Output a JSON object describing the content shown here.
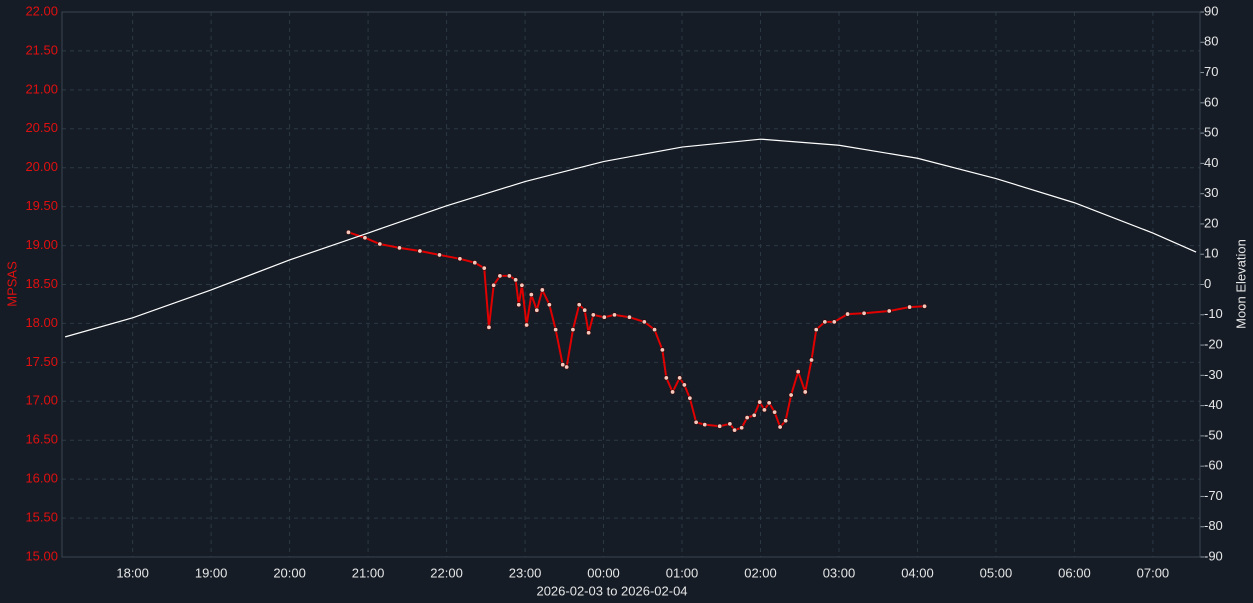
{
  "chart_data": {
    "type": "line",
    "xlabel": "2026-02-03 to 2026-02-04",
    "ylabel": "MPSAS",
    "y2label": "Moon Elevation",
    "grid": true,
    "xlim": [
      17.1,
      31.6
    ],
    "xticks": [
      {
        "value": 18,
        "label": "18:00"
      },
      {
        "value": 19,
        "label": "19:00"
      },
      {
        "value": 20,
        "label": "20:00"
      },
      {
        "value": 21,
        "label": "21:00"
      },
      {
        "value": 22,
        "label": "22:00"
      },
      {
        "value": 23,
        "label": "23:00"
      },
      {
        "value": 24,
        "label": "00:00"
      },
      {
        "value": 25,
        "label": "01:00"
      },
      {
        "value": 26,
        "label": "02:00"
      },
      {
        "value": 27,
        "label": "03:00"
      },
      {
        "value": 28,
        "label": "04:00"
      },
      {
        "value": 29,
        "label": "05:00"
      },
      {
        "value": 30,
        "label": "06:00"
      },
      {
        "value": 31,
        "label": "07:00"
      }
    ],
    "ylim": [
      15,
      22
    ],
    "yticks": [
      {
        "value": 15,
        "label": "15.00"
      },
      {
        "value": 15.5,
        "label": "15.50"
      },
      {
        "value": 16,
        "label": "16.00"
      },
      {
        "value": 16.5,
        "label": "16.50"
      },
      {
        "value": 17,
        "label": "17.00"
      },
      {
        "value": 17.5,
        "label": "17.50"
      },
      {
        "value": 18,
        "label": "18.00"
      },
      {
        "value": 18.5,
        "label": "18.50"
      },
      {
        "value": 19,
        "label": "19.00"
      },
      {
        "value": 19.5,
        "label": "19.50"
      },
      {
        "value": 20,
        "label": "20.00"
      },
      {
        "value": 20.5,
        "label": "20.50"
      },
      {
        "value": 21,
        "label": "21.00"
      },
      {
        "value": 21.5,
        "label": "21.50"
      },
      {
        "value": 22,
        "label": "22.00"
      }
    ],
    "y2lim": [
      -90,
      90
    ],
    "y2ticks": [
      -90,
      -80,
      -70,
      -60,
      -50,
      -40,
      -30,
      -20,
      -10,
      0,
      10,
      20,
      30,
      40,
      50,
      60,
      70,
      80,
      90
    ],
    "series": [
      {
        "color": "#e00000",
        "marker_color": "#f4c8bc",
        "x": [
          20.75,
          20.96,
          21.15,
          21.4,
          21.66,
          21.91,
          22.17,
          22.36,
          22.48,
          22.54,
          22.6,
          22.68,
          22.8,
          22.88,
          22.92,
          22.96,
          23.02,
          23.08,
          23.15,
          23.22,
          23.31,
          23.39,
          23.48,
          23.53,
          23.61,
          23.69,
          23.76,
          23.81,
          23.87,
          24.01,
          24.14,
          24.33,
          24.52,
          24.65,
          24.75,
          24.8,
          24.88,
          24.97,
          25.03,
          25.1,
          25.18,
          25.29,
          25.48,
          25.61,
          25.67,
          25.76,
          25.83,
          25.92,
          25.99,
          26.05,
          26.11,
          26.18,
          26.25,
          26.32,
          26.39,
          26.48,
          26.57,
          26.65,
          26.71,
          26.82,
          26.94,
          27.11,
          27.32,
          27.64,
          27.9,
          28.09
        ],
        "values": [
          19.17,
          19.1,
          19.02,
          18.97,
          18.93,
          18.88,
          18.83,
          18.78,
          18.71,
          17.95,
          18.49,
          18.61,
          18.61,
          18.56,
          18.24,
          18.49,
          17.98,
          18.37,
          18.17,
          18.43,
          18.24,
          17.92,
          17.47,
          17.44,
          17.92,
          18.24,
          18.17,
          17.88,
          18.11,
          18.08,
          18.11,
          18.08,
          18.02,
          17.92,
          17.66,
          17.3,
          17.12,
          17.3,
          17.21,
          17.04,
          16.73,
          16.7,
          16.68,
          16.71,
          16.63,
          16.66,
          16.79,
          16.82,
          16.99,
          16.89,
          16.98,
          16.86,
          16.67,
          16.75,
          17.08,
          17.38,
          17.12,
          17.53,
          17.92,
          18.02,
          18.02,
          18.12,
          18.13,
          18.16,
          18.21,
          18.22
        ]
      },
      {
        "color": "#ffffff",
        "axis": "y2",
        "x": [
          17.14,
          18,
          19,
          20,
          21,
          22,
          23,
          24,
          25,
          26,
          27,
          28,
          29,
          30,
          31,
          31.55
        ],
        "values": [
          -17.3,
          -11,
          -1.8,
          8.1,
          17,
          26,
          34,
          40.6,
          45.4,
          48,
          46,
          41.7,
          35,
          27,
          17,
          10.7
        ]
      }
    ]
  }
}
